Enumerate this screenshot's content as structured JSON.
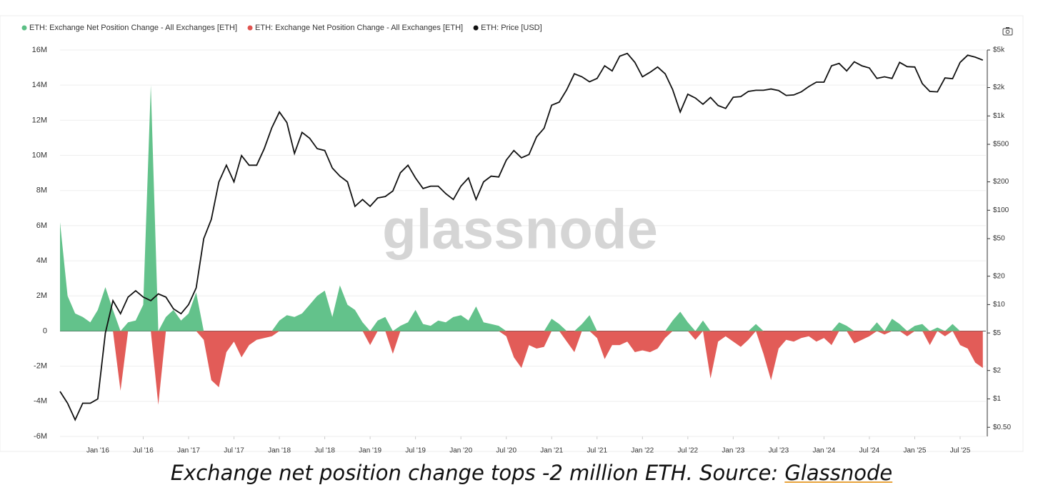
{
  "chart_data": {
    "type": "area-line",
    "legend_position": "top-left",
    "watermark": "glassnode",
    "grid": true,
    "y2log": true,
    "x": [
      "2015-08",
      "2015-09",
      "2015-10",
      "2015-11",
      "2015-12",
      "2016-01",
      "2016-02",
      "2016-03",
      "2016-04",
      "2016-05",
      "2016-06",
      "2016-07",
      "2016-08",
      "2016-09",
      "2016-10",
      "2016-11",
      "2016-12",
      "2017-01",
      "2017-02",
      "2017-03",
      "2017-04",
      "2017-05",
      "2017-06",
      "2017-07",
      "2017-08",
      "2017-09",
      "2017-10",
      "2017-11",
      "2017-12",
      "2018-01",
      "2018-02",
      "2018-03",
      "2018-04",
      "2018-05",
      "2018-06",
      "2018-07",
      "2018-08",
      "2018-09",
      "2018-10",
      "2018-11",
      "2018-12",
      "2019-01",
      "2019-02",
      "2019-03",
      "2019-04",
      "2019-05",
      "2019-06",
      "2019-07",
      "2019-08",
      "2019-09",
      "2019-10",
      "2019-11",
      "2019-12",
      "2020-01",
      "2020-02",
      "2020-03",
      "2020-04",
      "2020-05",
      "2020-06",
      "2020-07",
      "2020-08",
      "2020-09",
      "2020-10",
      "2020-11",
      "2020-12",
      "2021-01",
      "2021-02",
      "2021-03",
      "2021-04",
      "2021-05",
      "2021-06",
      "2021-07",
      "2021-08",
      "2021-09",
      "2021-10",
      "2021-11",
      "2021-12",
      "2022-01",
      "2022-02",
      "2022-03",
      "2022-04",
      "2022-05",
      "2022-06",
      "2022-07",
      "2022-08",
      "2022-09",
      "2022-10",
      "2022-11",
      "2022-12",
      "2023-01",
      "2023-02",
      "2023-03",
      "2023-04",
      "2023-05",
      "2023-06",
      "2023-07",
      "2023-08",
      "2023-09",
      "2023-10",
      "2023-11",
      "2023-12",
      "2024-01",
      "2024-02",
      "2024-03",
      "2024-04",
      "2024-05",
      "2024-06",
      "2024-07",
      "2024-08",
      "2024-09",
      "2024-10",
      "2024-11",
      "2024-12",
      "2025-01",
      "2025-02",
      "2025-03",
      "2025-04",
      "2025-05",
      "2025-06",
      "2025-07",
      "2025-08",
      "2025-09",
      "2025-10"
    ],
    "xticks": [
      {
        "value": "2016-01",
        "label": "Jan '16"
      },
      {
        "value": "2016-07",
        "label": "Jul '16"
      },
      {
        "value": "2017-01",
        "label": "Jan '17"
      },
      {
        "value": "2017-07",
        "label": "Jul '17"
      },
      {
        "value": "2018-01",
        "label": "Jan '18"
      },
      {
        "value": "2018-07",
        "label": "Jul '18"
      },
      {
        "value": "2019-01",
        "label": "Jan '19"
      },
      {
        "value": "2019-07",
        "label": "Jul '19"
      },
      {
        "value": "2020-01",
        "label": "Jan '20"
      },
      {
        "value": "2020-07",
        "label": "Jul '20"
      },
      {
        "value": "2021-01",
        "label": "Jan '21"
      },
      {
        "value": "2021-07",
        "label": "Jul '21"
      },
      {
        "value": "2022-01",
        "label": "Jan '22"
      },
      {
        "value": "2022-07",
        "label": "Jul '22"
      },
      {
        "value": "2023-01",
        "label": "Jan '23"
      },
      {
        "value": "2023-07",
        "label": "Jul '23"
      },
      {
        "value": "2024-01",
        "label": "Jan '24"
      },
      {
        "value": "2024-07",
        "label": "Jul '24"
      },
      {
        "value": "2025-01",
        "label": "Jan '25"
      },
      {
        "value": "2025-07",
        "label": "Jul '25"
      }
    ],
    "ylim": [
      -6000000,
      16000000
    ],
    "yticks": [
      {
        "value": -6000000,
        "label": "-6M"
      },
      {
        "value": -4000000,
        "label": "-4M"
      },
      {
        "value": -2000000,
        "label": "-2M"
      },
      0,
      {
        "value": 2000000,
        "label": "2M"
      },
      {
        "value": 4000000,
        "label": "4M"
      },
      {
        "value": 6000000,
        "label": "6M"
      },
      {
        "value": 8000000,
        "label": "8M"
      },
      {
        "value": 10000000,
        "label": "10M"
      },
      {
        "value": 12000000,
        "label": "12M"
      },
      {
        "value": 14000000,
        "label": "14M"
      },
      {
        "value": 16000000,
        "label": "16M"
      }
    ],
    "y2lim": [
      0.4,
      5000
    ],
    "y2ticks": [
      {
        "value": 0.5,
        "label": "$0.50"
      },
      {
        "value": 1,
        "label": "$1"
      },
      {
        "value": 2,
        "label": "$2"
      },
      {
        "value": 5,
        "label": "$5"
      },
      {
        "value": 10,
        "label": "$10"
      },
      {
        "value": 20,
        "label": "$20"
      },
      {
        "value": 50,
        "label": "$50"
      },
      {
        "value": 100,
        "label": "$100"
      },
      {
        "value": 200,
        "label": "$200"
      },
      {
        "value": 500,
        "label": "$500"
      },
      {
        "value": 1000,
        "label": "$1k"
      },
      {
        "value": 2000,
        "label": "$2k"
      },
      {
        "value": 5000,
        "label": "$5k"
      }
    ],
    "series": [
      {
        "name": "ETH: Exchange Net Position Change - All Exchanges [ETH]",
        "color": "#5bbf85",
        "kind": "area",
        "values": [
          6200000,
          2000000,
          1000000,
          800000,
          500000,
          1200000,
          2500000,
          1200000,
          0,
          500000,
          600000,
          1500000,
          14000000,
          0,
          800000,
          1200000,
          600000,
          1000000,
          2200000,
          0,
          0,
          0,
          0,
          0,
          0,
          0,
          0,
          0,
          0,
          600000,
          900000,
          800000,
          1000000,
          1500000,
          2000000,
          2300000,
          800000,
          2600000,
          1500000,
          1200000,
          500000,
          0,
          600000,
          800000,
          0,
          300000,
          500000,
          1200000,
          400000,
          300000,
          600000,
          500000,
          800000,
          900000,
          600000,
          1400000,
          500000,
          400000,
          300000,
          0,
          0,
          0,
          0,
          0,
          0,
          700000,
          400000,
          0,
          0,
          400000,
          900000,
          0,
          0,
          0,
          0,
          0,
          0,
          0,
          0,
          0,
          0,
          600000,
          1100000,
          500000,
          0,
          600000,
          0,
          0,
          0,
          0,
          0,
          0,
          400000,
          0,
          0,
          0,
          0,
          0,
          0,
          0,
          0,
          0,
          0,
          500000,
          300000,
          0,
          0,
          0,
          500000,
          0,
          700000,
          400000,
          0,
          300000,
          400000,
          0,
          200000,
          0,
          400000,
          0,
          0,
          0,
          0
        ]
      },
      {
        "name": "ETH: Exchange Net Position Change - All Exchanges [ETH]",
        "color": "#e0534f",
        "kind": "area",
        "values": [
          0,
          0,
          0,
          0,
          0,
          0,
          0,
          0,
          -3400000,
          0,
          0,
          0,
          0,
          -4200000,
          0,
          0,
          0,
          0,
          0,
          -500000,
          -2800000,
          -3200000,
          -1200000,
          -600000,
          -1500000,
          -800000,
          -500000,
          -400000,
          -300000,
          0,
          0,
          0,
          0,
          0,
          0,
          0,
          0,
          0,
          0,
          0,
          0,
          -800000,
          0,
          0,
          -1300000,
          0,
          0,
          0,
          0,
          0,
          0,
          0,
          0,
          0,
          0,
          0,
          0,
          0,
          0,
          -300000,
          -1500000,
          -2100000,
          -800000,
          -1000000,
          -900000,
          0,
          0,
          -600000,
          -1200000,
          0,
          0,
          -400000,
          -1600000,
          -800000,
          -800000,
          -600000,
          -1200000,
          -1100000,
          -1200000,
          -1000000,
          -400000,
          0,
          0,
          0,
          -500000,
          0,
          -2700000,
          -600000,
          -300000,
          -600000,
          -900000,
          -500000,
          0,
          -1300000,
          -2800000,
          -1000000,
          -500000,
          -600000,
          -400000,
          -300000,
          -600000,
          -400000,
          -800000,
          0,
          0,
          -700000,
          -500000,
          -300000,
          0,
          -200000,
          0,
          0,
          -300000,
          0,
          0,
          -800000,
          0,
          -300000,
          0,
          -800000,
          -1000000,
          -1800000,
          -2100000
        ]
      },
      {
        "name": "ETH: Price [USD]",
        "color": "#111111",
        "kind": "line",
        "axis": "y2",
        "values": [
          1.2,
          0.9,
          0.6,
          0.9,
          0.9,
          1,
          5,
          11,
          8,
          12,
          14,
          12,
          11,
          13,
          12,
          9,
          8,
          10,
          15,
          50,
          80,
          200,
          300,
          200,
          380,
          300,
          300,
          450,
          750,
          1100,
          850,
          400,
          670,
          580,
          450,
          430,
          280,
          230,
          200,
          110,
          130,
          110,
          135,
          140,
          160,
          250,
          300,
          220,
          170,
          180,
          180,
          150,
          130,
          180,
          220,
          130,
          200,
          230,
          225,
          340,
          430,
          360,
          390,
          600,
          740,
          1300,
          1400,
          1900,
          2800,
          2600,
          2300,
          2500,
          3400,
          3000,
          4300,
          4600,
          3700,
          2600,
          2900,
          3300,
          2800,
          1900,
          1100,
          1700,
          1550,
          1330,
          1570,
          1290,
          1200,
          1580,
          1600,
          1820,
          1870,
          1870,
          1930,
          1860,
          1650,
          1670,
          1800,
          2050,
          2280,
          2280,
          3400,
          3600,
          3000,
          3750,
          3400,
          3230,
          2500,
          2600,
          2500,
          3700,
          3330,
          3300,
          2200,
          1820,
          1800,
          2530,
          2480,
          3700,
          4400,
          4200,
          3900
        ]
      }
    ],
    "caption": "Exchange net position change tops -2 million ETH. Source:",
    "caption_link": "Glassnode"
  }
}
